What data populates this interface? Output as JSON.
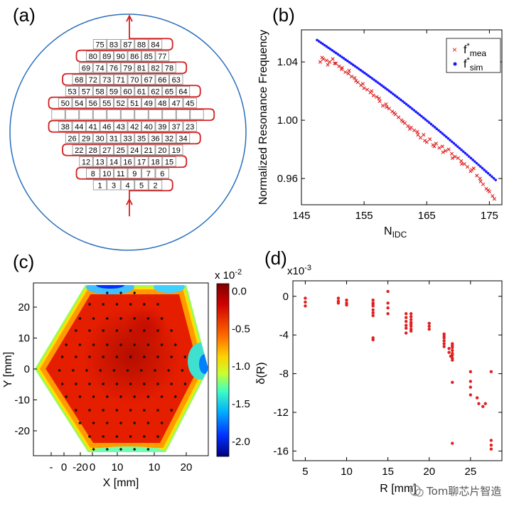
{
  "panels": {
    "a": "(a)",
    "b": "(b)",
    "c": "(c)",
    "d": "(d)"
  },
  "panel_a": {
    "rows": [
      [
        "75",
        "83",
        "87",
        "88",
        "84"
      ],
      [
        "80",
        "89",
        "90",
        "86",
        "85",
        "77"
      ],
      [
        "69",
        "74",
        "76",
        "79",
        "81",
        "82",
        "78"
      ],
      [
        "68",
        "72",
        "73",
        "71",
        "70",
        "67",
        "66",
        "63"
      ],
      [
        "53",
        "57",
        "58",
        "59",
        "60",
        "61",
        "62",
        "65",
        "64"
      ],
      [
        "50",
        "54",
        "56",
        "55",
        "52",
        "51",
        "49",
        "48",
        "47",
        "45"
      ],
      [
        "",
        "",
        "",
        "",
        "",
        "",
        "",
        "",
        "",
        "",
        ""
      ],
      [
        "38",
        "44",
        "41",
        "46",
        "43",
        "42",
        "40",
        "39",
        "37",
        "23"
      ],
      [
        "26",
        "29",
        "30",
        "31",
        "33",
        "35",
        "36",
        "32",
        "34"
      ],
      [
        "22",
        "28",
        "27",
        "25",
        "24",
        "21",
        "20",
        "19"
      ],
      [
        "12",
        "13",
        "14",
        "16",
        "17",
        "18",
        "15"
      ],
      [
        "8",
        "10",
        "11",
        "9",
        "7",
        "6"
      ],
      [
        "1",
        "3",
        "4",
        "5",
        "2"
      ]
    ]
  },
  "chart_data": [
    {
      "panel": "b",
      "type": "scatter",
      "xlabel": "N",
      "xlabel_sub": "IDC",
      "ylabel": "Normalized Resonance Frequency",
      "xlim": [
        145,
        177
      ],
      "ylim": [
        0.942,
        1.062
      ],
      "xticks": [
        "145",
        "155",
        "165",
        "175"
      ],
      "xtick_values": [
        145,
        155,
        165,
        175
      ],
      "yticks": [
        "0.96",
        "1.00",
        "1.04"
      ],
      "ytick_values": [
        0.96,
        1.0,
        1.04
      ],
      "legend_position": "top-right",
      "series": [
        {
          "name": "f",
          "name_sup": "*",
          "name_sub": "mea",
          "color": "#e02020",
          "marker": "x",
          "x": [
            148,
            148.5,
            149,
            149.5,
            150,
            150.5,
            151,
            151.5,
            152,
            152.5,
            153,
            153.5,
            154,
            154.5,
            155,
            155.5,
            156,
            156.5,
            157,
            157.5,
            158,
            158.5,
            159,
            159.5,
            160,
            160.5,
            161,
            161.5,
            162,
            162.5,
            163,
            163.5,
            164,
            164.5,
            165,
            165.5,
            166,
            166.5,
            167,
            167.5,
            168,
            168.5,
            169,
            169.5,
            170,
            170.5,
            171,
            171.5,
            172,
            172.5,
            173,
            173.5,
            174,
            174.5,
            175,
            175.5,
            148.3,
            149.2,
            150.3,
            151.4,
            152.6,
            153.7,
            154.8,
            156.2,
            157.4,
            158.6,
            159.8,
            161.2,
            162.3,
            163.6,
            164.7,
            166.2,
            167.6,
            169.1,
            170.6,
            172.2,
            173.6,
            174.8,
            175.8
          ],
          "y": [
            1.04,
            1.042,
            1.041,
            1.04,
            1.042,
            1.039,
            1.037,
            1.036,
            1.033,
            1.032,
            1.03,
            1.029,
            1.026,
            1.024,
            1.022,
            1.021,
            1.019,
            1.017,
            1.016,
            1.013,
            1.01,
            1.011,
            1.008,
            1.006,
            1.004,
            1.002,
            1.0,
            0.998,
            0.996,
            0.995,
            0.993,
            0.992,
            0.988,
            0.99,
            0.985,
            0.987,
            0.983,
            0.984,
            0.981,
            0.982,
            0.979,
            0.98,
            0.977,
            0.975,
            0.974,
            0.972,
            0.97,
            0.968,
            0.965,
            0.967,
            0.962,
            0.96,
            0.956,
            0.953,
            0.951,
            0.948,
            1.043,
            1.038,
            1.039,
            1.035,
            1.034,
            1.027,
            1.025,
            1.02,
            1.015,
            1.009,
            1.005,
            0.999,
            0.994,
            0.99,
            0.986,
            0.982,
            0.978,
            0.974,
            0.97,
            0.966,
            0.958,
            0.952,
            0.946
          ]
        },
        {
          "name": "f",
          "name_sup": "*",
          "name_sub": "sim",
          "color": "#1a1aff",
          "marker": "dot",
          "x_start": 147.5,
          "x_end": 176.0,
          "y_start": 1.055,
          "y_end": 0.959,
          "count": 95
        }
      ]
    },
    {
      "panel": "c",
      "type": "heatmap",
      "xlabel": "X [mm]",
      "ylabel": "Y [mm]",
      "xticks": [
        "-",
        "0",
        "-20",
        "0",
        "10",
        "10",
        "20"
      ],
      "yticks": [
        "20",
        "10",
        "0",
        "-10",
        "-20"
      ],
      "ytick_values": [
        20,
        10,
        0,
        -10,
        -20
      ],
      "colorbar": {
        "exponent": "x 10",
        "exponent_sup": "-2",
        "ticks": [
          "0.0",
          "-0.5",
          "-1.0",
          "-1.5",
          "-2.0"
        ],
        "tick_values": [
          0.0,
          -0.5,
          -1.0,
          -1.5,
          -2.0
        ],
        "range": [
          -2.2,
          0.1
        ]
      }
    },
    {
      "panel": "d",
      "type": "scatter",
      "xlabel": "R [mm]",
      "ylabel": "δ(R)",
      "y_exponent": "x10",
      "y_exponent_sup": "-3",
      "xlim": [
        3.5,
        28.8
      ],
      "ylim": [
        -17.0,
        1.6
      ],
      "xticks": [
        "5",
        "10",
        "15",
        "20",
        "25"
      ],
      "xtick_values": [
        5,
        10,
        15,
        20,
        25
      ],
      "yticks": [
        "0",
        "-4",
        "-8",
        "-12",
        "-16"
      ],
      "ytick_values": [
        0,
        -4,
        -8,
        -12,
        -16
      ],
      "series": [
        {
          "color": "#e02020",
          "x": [
            5,
            5,
            5,
            9,
            9,
            9,
            10,
            10,
            10,
            13.2,
            13.2,
            13.2,
            13.2,
            13.2,
            13.2,
            13.2,
            13.2,
            13.2,
            15,
            15,
            15,
            15,
            17.2,
            17.2,
            17.2,
            17.2,
            17.2,
            17.2,
            17.8,
            17.8,
            17.8,
            17.8,
            17.8,
            17.8,
            17.8,
            17.8,
            20,
            20,
            20,
            21.8,
            21.8,
            21.8,
            21.8,
            21.8,
            21.8,
            22.4,
            22.4,
            22.6,
            22.8,
            22.8,
            22.8,
            22.8,
            22.8,
            22.8,
            22.8,
            22.8,
            22.8,
            22.8,
            25,
            25,
            25,
            25,
            25.8,
            26,
            26.5,
            26.8,
            27.5,
            27.5,
            27.5,
            27.5
          ],
          "y": [
            -0.2,
            -0.6,
            -1.0,
            -0.2,
            -0.5,
            -0.7,
            -0.4,
            -0.7,
            -0.9,
            -0.4,
            -0.7,
            -1.0,
            -1.4,
            -1.7,
            -2.0,
            -4.3,
            -4.5,
            -0.8,
            0.5,
            -0.7,
            -1.2,
            -1.8,
            -1.8,
            -2.2,
            -2.6,
            -3.0,
            -3.3,
            -3.8,
            -1.8,
            -2.1,
            -2.4,
            -2.7,
            -2.9,
            -3.1,
            -3.4,
            -3.6,
            -2.8,
            -3.1,
            -3.4,
            -3.9,
            -4.1,
            -4.3,
            -4.6,
            -4.9,
            -5.2,
            -5.4,
            -5.8,
            -6.2,
            -4.9,
            -5.1,
            -5.3,
            -5.6,
            -5.9,
            -6.1,
            -6.4,
            -6.6,
            -8.9,
            -15.2,
            -7.8,
            -8.8,
            -9.4,
            -10.2,
            -10.5,
            -11.1,
            -11.4,
            -11.1,
            -7.8,
            -14.9,
            -15.4,
            -15.8
          ]
        }
      ]
    }
  ],
  "watermark": "Tom聊芯片智造"
}
